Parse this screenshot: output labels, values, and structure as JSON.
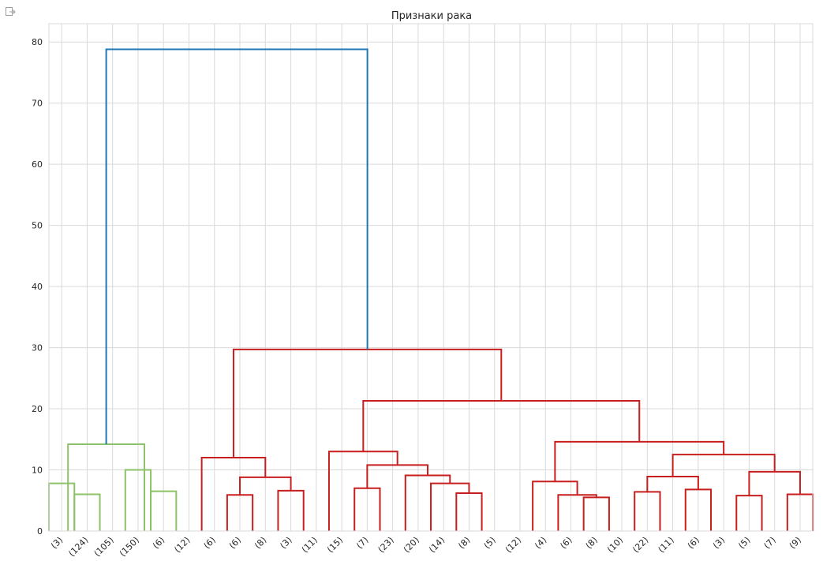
{
  "output_icon": "output-arrow-icon",
  "chart_data": {
    "type": "dendrogram",
    "title": "Признаки рака",
    "xlabel": "",
    "ylabel": "",
    "ylim": [
      0,
      83
    ],
    "yticks": [
      0,
      10,
      20,
      30,
      40,
      50,
      60,
      70,
      80
    ],
    "grid": true,
    "leaf_labels": [
      "(3)",
      "(124)",
      "(105)",
      "(150)",
      "(6)",
      "(12)",
      "(6)",
      "(6)",
      "(8)",
      "(3)",
      "(11)",
      "(15)",
      "(7)",
      "(23)",
      "(20)",
      "(14)",
      "(8)",
      "(5)",
      "(12)",
      "(4)",
      "(6)",
      "(8)",
      "(10)",
      "(22)",
      "(11)",
      "(6)",
      "(3)",
      "(5)",
      "(7)",
      "(9)"
    ],
    "colors": {
      "green": "#8dc26a",
      "red": "#c81e1e",
      "blue": "#1f77b4",
      "grid": "#d9d9d9",
      "axis": "#262626"
    },
    "links": [
      {
        "left": 0,
        "right": 1,
        "height": 7.8,
        "color": "green"
      },
      {
        "left": 1,
        "right": 2,
        "height": 6.0,
        "color": "green"
      },
      {
        "left": 3,
        "right": 4,
        "height": 10.0,
        "color": "green"
      },
      {
        "left": 4,
        "right": 5,
        "height": 6.5,
        "color": "green"
      },
      {
        "left": 0.75,
        "right": 3.75,
        "height": 14.2,
        "color": "green"
      },
      {
        "left": 7,
        "right": 8,
        "height": 5.9,
        "color": "red"
      },
      {
        "left": 9,
        "right": 10,
        "height": 6.6,
        "color": "red"
      },
      {
        "left": 7.5,
        "right": 9.5,
        "height": 8.8,
        "color": "red"
      },
      {
        "left": 6,
        "right": 8.5,
        "height": 12.0,
        "color": "red"
      },
      {
        "left": 12,
        "right": 13,
        "height": 7.0,
        "color": "red"
      },
      {
        "left": 16,
        "right": 17,
        "height": 6.2,
        "color": "red"
      },
      {
        "left": 15,
        "right": 16.5,
        "height": 7.8,
        "color": "red"
      },
      {
        "left": 14,
        "right": 15.75,
        "height": 9.1,
        "color": "red"
      },
      {
        "left": 12.5,
        "right": 14.875,
        "height": 10.8,
        "color": "red"
      },
      {
        "left": 11,
        "right": 13.6875,
        "height": 13.0,
        "color": "red"
      },
      {
        "left": 21,
        "right": 22,
        "height": 5.5,
        "color": "red"
      },
      {
        "left": 20,
        "right": 21.5,
        "height": 5.9,
        "color": "red"
      },
      {
        "left": 19,
        "right": 20.75,
        "height": 8.1,
        "color": "red"
      },
      {
        "left": 23,
        "right": 24,
        "height": 6.4,
        "color": "red"
      },
      {
        "left": 25,
        "right": 26,
        "height": 6.8,
        "color": "red"
      },
      {
        "left": 23.5,
        "right": 25.5,
        "height": 8.9,
        "color": "red"
      },
      {
        "left": 27,
        "right": 28,
        "height": 5.8,
        "color": "red"
      },
      {
        "left": 29,
        "right": 30,
        "height": 6.0,
        "color": "red"
      },
      {
        "left": 27.5,
        "right": 29.5,
        "height": 9.7,
        "color": "red"
      },
      {
        "left": 24.5,
        "right": 28.5,
        "height": 12.5,
        "color": "red"
      },
      {
        "left": 19.875,
        "right": 26.5,
        "height": 14.6,
        "color": "red"
      },
      {
        "left": 12.34375,
        "right": 23.1875,
        "height": 21.3,
        "color": "red"
      },
      {
        "left": 7.25,
        "right": 17.765625,
        "height": 29.7,
        "color": "red"
      },
      {
        "left": 2.25,
        "right": 12.5078125,
        "height": 78.8,
        "color": "blue"
      }
    ]
  }
}
